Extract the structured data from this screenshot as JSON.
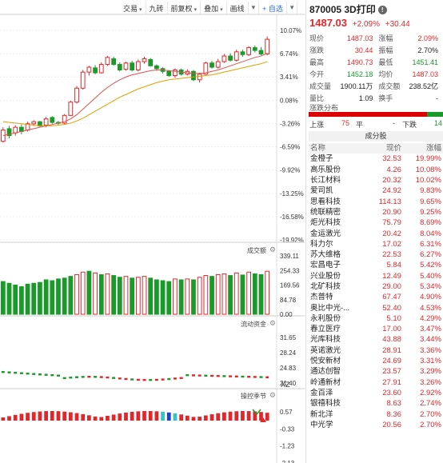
{
  "toolbar": [
    "交易",
    "九砖",
    "前复权",
    "叠加",
    "画线"
  ],
  "toolbar_add": "+ 自选",
  "panels": {
    "volume_title": "成交额",
    "fund_title": "流动资金",
    "season_title": "操控季节",
    "legend_xz": "XZ"
  },
  "price_axis": [
    "10.07%",
    "6.74%",
    "3.41%",
    "0.08%",
    "-3.26%",
    "-6.59%",
    "-9.92%",
    "-13.25%",
    "-16.58%",
    "-19.92%"
  ],
  "vol_axis": [
    "339.11",
    "254.33",
    "169.56",
    "84.78",
    "0.00"
  ],
  "fund_axis": [
    "31.65",
    "28.24",
    "24.83",
    "21.40"
  ],
  "season_axis": [
    "0.57",
    "-0.33",
    "-1.23",
    "-2.13"
  ],
  "stock": {
    "name": "870005 3D打印",
    "price": "1487.03",
    "pct": "+2.09%",
    "chg": "+30.44"
  },
  "quote": [
    {
      "k1": "现价",
      "v1": "1487.03",
      "c1": "red",
      "k2": "涨幅",
      "v2": "2.09%",
      "c2": "red"
    },
    {
      "k1": "涨跌",
      "v1": "30.44",
      "c1": "red",
      "k2": "振幅",
      "v2": "2.70%",
      "c2": "dark"
    },
    {
      "k1": "最高",
      "v1": "1490.73",
      "c1": "red",
      "k2": "最低",
      "v2": "1451.41",
      "c2": "green"
    },
    {
      "k1": "今开",
      "v1": "1452.18",
      "c1": "green",
      "k2": "均价",
      "v2": "1487.03",
      "c2": "red"
    },
    {
      "k1": "成交量",
      "v1": "1900.11万",
      "c1": "dark",
      "k2": "成交额",
      "v2": "238.52亿",
      "c2": "dark"
    },
    {
      "k1": "量比",
      "v1": "1.09",
      "c1": "dark",
      "k2": "换手",
      "v2": "-",
      "c2": "dark"
    }
  ],
  "dist": {
    "title": "涨跌分布",
    "up_label": "上涨",
    "up": "75",
    "flat_label": "平",
    "flat": "-",
    "down_label": "下跌",
    "down": "14"
  },
  "components": {
    "title": "成分股",
    "headers": [
      "名称",
      "现价",
      "涨幅"
    ],
    "rows": [
      [
        "金橙子",
        "32.53",
        "19.99%"
      ],
      [
        "高乐股份",
        "4.26",
        "10.08%"
      ],
      [
        "长江材料",
        "20.32",
        "10.02%"
      ],
      [
        "爱司凯",
        "24.92",
        "9.83%"
      ],
      [
        "思看科技",
        "114.13",
        "9.65%"
      ],
      [
        "统联精密",
        "20.90",
        "9.25%"
      ],
      [
        "炬光科技",
        "75.79",
        "8.69%"
      ],
      [
        "金运激光",
        "20.42",
        "8.04%"
      ],
      [
        "科力尔",
        "17.02",
        "6.31%"
      ],
      [
        "苏大维格",
        "22.53",
        "6.27%"
      ],
      [
        "宏昌电子",
        "5.84",
        "5.42%"
      ],
      [
        "兴业股份",
        "12.49",
        "5.40%"
      ],
      [
        "北矿科技",
        "29.00",
        "5.34%"
      ],
      [
        "杰普特",
        "67.47",
        "4.90%"
      ],
      [
        "奥比中光-...",
        "52.40",
        "4.53%"
      ],
      [
        "永利股份",
        "5.10",
        "4.29%"
      ],
      [
        "春立医疗",
        "17.00",
        "3.47%"
      ],
      [
        "光库科技",
        "43.88",
        "3.44%"
      ],
      [
        "英诺激光",
        "28.91",
        "3.36%"
      ],
      [
        "悦安新材",
        "24.69",
        "3.31%"
      ],
      [
        "通达创智",
        "23.57",
        "3.29%"
      ],
      [
        "岭通新材",
        "27.91",
        "3.26%"
      ],
      [
        "金百泽",
        "23.60",
        "2.92%"
      ],
      [
        "银禧科技",
        "8.63",
        "2.74%"
      ],
      [
        "新北洋",
        "8.36",
        "2.70%"
      ],
      [
        "中光学",
        "20.56",
        "2.70%"
      ]
    ]
  },
  "colors": {
    "up": "#e0282c",
    "down": "#1a9a2a",
    "ma1": "#e0a000",
    "ma2": "#e05050"
  },
  "chart_data": {
    "type": "candlestick",
    "y_axis_pct": [
      10.07,
      -19.92
    ],
    "candles": [
      {
        "o": -5.8,
        "c": -4.2,
        "h": -3.8,
        "l": -6.0
      },
      {
        "o": -4.0,
        "c": -5.0,
        "h": -3.6,
        "l": -5.4
      },
      {
        "o": -4.6,
        "c": -3.8,
        "h": -3.5,
        "l": -5.0
      },
      {
        "o": -3.8,
        "c": -4.4,
        "h": -3.4,
        "l": -4.8
      },
      {
        "o": -4.2,
        "c": -3.3,
        "h": -3.0,
        "l": -4.4
      },
      {
        "o": -3.3,
        "c": -3.0,
        "h": -2.8,
        "l": -3.6
      },
      {
        "o": -3.0,
        "c": -3.6,
        "h": -2.9,
        "l": -3.8
      },
      {
        "o": -3.5,
        "c": -2.6,
        "h": -2.3,
        "l": -3.8
      },
      {
        "o": -2.4,
        "c": -3.1,
        "h": -2.2,
        "l": -3.3
      },
      {
        "o": -3.1,
        "c": -3.2,
        "h": -2.9,
        "l": -3.5
      },
      {
        "o": -3.2,
        "c": -2.1,
        "h": -1.9,
        "l": -3.4
      },
      {
        "o": -2.1,
        "c": -0.2,
        "h": 0.0,
        "l": -2.2
      },
      {
        "o": -0.2,
        "c": 1.8,
        "h": 2.1,
        "l": -0.4
      },
      {
        "o": 1.8,
        "c": 4.1,
        "h": 4.4,
        "l": 1.6
      },
      {
        "o": 4.1,
        "c": 4.8,
        "h": 5.0,
        "l": 3.6
      },
      {
        "o": 4.7,
        "c": 4.0,
        "h": 5.1,
        "l": 3.8
      },
      {
        "o": 4.0,
        "c": 5.2,
        "h": 5.5,
        "l": 3.9
      },
      {
        "o": 5.2,
        "c": 6.2,
        "h": 6.4,
        "l": 5.0
      },
      {
        "o": 6.0,
        "c": 5.2,
        "h": 6.3,
        "l": 5.0
      },
      {
        "o": 5.2,
        "c": 4.4,
        "h": 5.5,
        "l": 4.2
      },
      {
        "o": 4.5,
        "c": 5.4,
        "h": 5.6,
        "l": 4.3
      },
      {
        "o": 5.4,
        "c": 4.4,
        "h": 5.7,
        "l": 4.2
      },
      {
        "o": 4.4,
        "c": 5.6,
        "h": 5.9,
        "l": 4.2
      },
      {
        "o": 5.6,
        "c": 6.0,
        "h": 6.3,
        "l": 5.3
      },
      {
        "o": 5.9,
        "c": 5.0,
        "h": 6.1,
        "l": 4.9
      },
      {
        "o": 5.0,
        "c": 4.6,
        "h": 5.2,
        "l": 4.3
      },
      {
        "o": 4.6,
        "c": 4.2,
        "h": 4.8,
        "l": 3.9
      },
      {
        "o": 4.2,
        "c": 3.6,
        "h": 4.4,
        "l": 3.4
      },
      {
        "o": 3.6,
        "c": 4.4,
        "h": 4.6,
        "l": 3.3
      },
      {
        "o": 4.4,
        "c": 3.8,
        "h": 4.6,
        "l": 3.6
      },
      {
        "o": 3.8,
        "c": 4.2,
        "h": 4.5,
        "l": 3.6
      },
      {
        "o": 4.2,
        "c": 3.0,
        "h": 4.4,
        "l": 2.8
      },
      {
        "o": 3.0,
        "c": 3.8,
        "h": 4.0,
        "l": 2.6
      },
      {
        "o": 3.8,
        "c": 5.4,
        "h": 5.6,
        "l": 3.7
      },
      {
        "o": 5.4,
        "c": 4.8,
        "h": 5.7,
        "l": 4.6
      },
      {
        "o": 4.8,
        "c": 5.6,
        "h": 6.0,
        "l": 4.6
      },
      {
        "o": 5.6,
        "c": 6.4,
        "h": 6.7,
        "l": 5.4
      },
      {
        "o": 6.4,
        "c": 5.8,
        "h": 6.8,
        "l": 5.6
      },
      {
        "o": 5.8,
        "c": 7.0,
        "h": 7.3,
        "l": 5.6
      },
      {
        "o": 7.0,
        "c": 6.6,
        "h": 7.3,
        "l": 6.3
      },
      {
        "o": 6.6,
        "c": 7.6,
        "h": 7.8,
        "l": 6.4
      },
      {
        "o": 7.6,
        "c": 7.2,
        "h": 7.9,
        "l": 6.9
      },
      {
        "o": 7.2,
        "c": 6.7,
        "h": 7.7,
        "l": 6.5
      },
      {
        "o": 6.7,
        "c": 8.8,
        "h": 9.2,
        "l": 6.5
      }
    ],
    "volume": [
      {
        "v": 190,
        "up": false
      },
      {
        "v": 180,
        "up": false
      },
      {
        "v": 170,
        "up": false
      },
      {
        "v": 160,
        "up": false
      },
      {
        "v": 175,
        "up": false
      },
      {
        "v": 180,
        "up": false
      },
      {
        "v": 185,
        "up": false
      },
      {
        "v": 200,
        "up": false
      },
      {
        "v": 195,
        "up": false
      },
      {
        "v": 205,
        "up": false
      },
      {
        "v": 210,
        "up": false
      },
      {
        "v": 220,
        "up": false
      },
      {
        "v": 230,
        "up": true
      },
      {
        "v": 245,
        "up": true
      },
      {
        "v": 250,
        "up": false
      },
      {
        "v": 240,
        "up": true
      },
      {
        "v": 230,
        "up": false
      },
      {
        "v": 235,
        "up": true
      },
      {
        "v": 225,
        "up": false
      },
      {
        "v": 215,
        "up": false
      },
      {
        "v": 220,
        "up": true
      },
      {
        "v": 210,
        "up": false
      },
      {
        "v": 215,
        "up": true
      },
      {
        "v": 220,
        "up": true
      },
      {
        "v": 210,
        "up": false
      },
      {
        "v": 200,
        "up": false
      },
      {
        "v": 195,
        "up": false
      },
      {
        "v": 190,
        "up": false
      },
      {
        "v": 205,
        "up": true
      },
      {
        "v": 200,
        "up": false
      },
      {
        "v": 205,
        "up": true
      },
      {
        "v": 200,
        "up": false
      },
      {
        "v": 215,
        "up": true
      },
      {
        "v": 225,
        "up": true
      },
      {
        "v": 220,
        "up": false
      },
      {
        "v": 230,
        "up": true
      },
      {
        "v": 235,
        "up": true
      },
      {
        "v": 225,
        "up": false
      },
      {
        "v": 240,
        "up": true
      },
      {
        "v": 228,
        "up": false
      },
      {
        "v": 245,
        "up": true
      },
      {
        "v": 235,
        "up": false
      },
      {
        "v": 230,
        "up": false
      },
      {
        "v": 250,
        "up": true
      }
    ],
    "ma_short": [
      -5.0,
      -4.8,
      -4.6,
      -4.4,
      -4.2,
      -4.0,
      -3.8,
      -3.6,
      -3.4,
      -3.2,
      -3.0,
      -2.6,
      -2.0,
      -1.2,
      -0.4,
      0.4,
      1.2,
      1.9,
      2.5,
      3.0,
      3.4,
      3.7,
      3.9,
      4.1,
      4.3,
      4.4,
      4.4,
      4.3,
      4.2,
      4.1,
      4.0,
      3.9,
      3.9,
      4.0,
      4.2,
      4.4,
      4.7,
      5.0,
      5.3,
      5.6,
      5.9,
      6.2,
      6.4,
      6.8
    ],
    "ma_long": [
      -3.0,
      -3.1,
      -3.2,
      -3.3,
      -3.4,
      -3.5,
      -3.6,
      -3.6,
      -3.6,
      -3.5,
      -3.4,
      -3.2,
      -2.9,
      -2.5,
      -2.0,
      -1.5,
      -1.0,
      -0.5,
      0.0,
      0.5,
      0.9,
      1.3,
      1.7,
      2.0,
      2.3,
      2.6,
      2.8,
      3.0,
      3.1,
      3.2,
      3.3,
      3.4,
      3.5,
      3.6,
      3.7,
      3.9,
      4.1,
      4.3,
      4.5,
      4.7,
      4.9,
      5.1,
      5.3,
      5.6
    ]
  }
}
